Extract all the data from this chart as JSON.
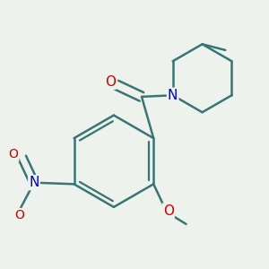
{
  "background_color": "#edf2ed",
  "bond_color": "#3a7575",
  "bond_width": 1.8,
  "atom_colors": {
    "O": "#cc0000",
    "N": "#0000cc",
    "C": "#000000"
  },
  "font_size_atom": 10,
  "figsize": [
    3.0,
    3.0
  ],
  "dpi": 100
}
